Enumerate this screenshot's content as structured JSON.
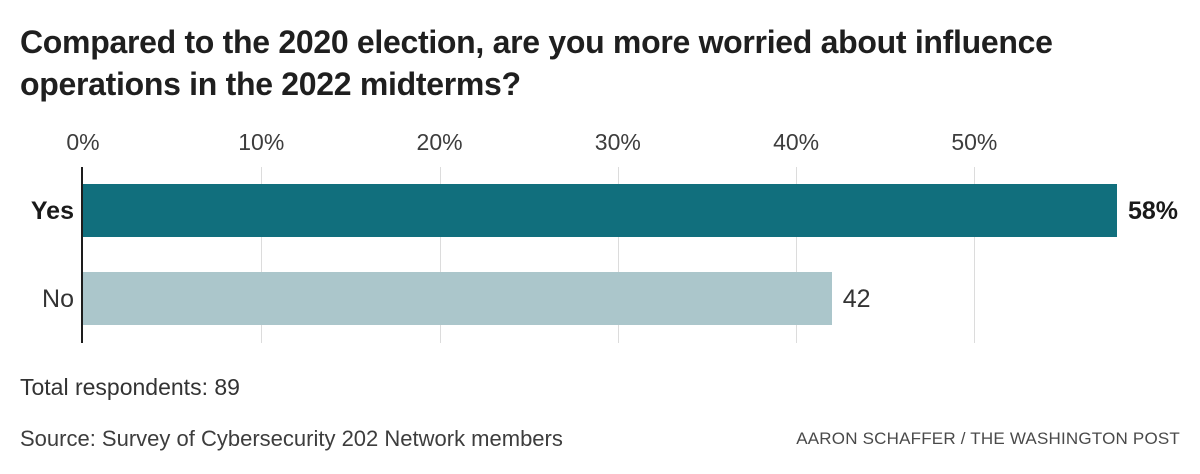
{
  "chart_data": {
    "type": "bar",
    "orientation": "horizontal",
    "title": "Compared to the 2020 election, are you more worried about influence operations in the 2022 midterms?",
    "categories": [
      "Yes",
      "No"
    ],
    "values": [
      58,
      42
    ],
    "value_labels": [
      "58%",
      "42"
    ],
    "emphasized": [
      true,
      false
    ],
    "bar_colors": [
      "#116f7d",
      "#abc6cb"
    ],
    "x_ticks": [
      0,
      10,
      20,
      30,
      40,
      50
    ],
    "x_tick_labels": [
      "0%",
      "10%",
      "20%",
      "30%",
      "40%",
      "50%"
    ],
    "xlim": [
      0,
      58
    ],
    "grid": true,
    "grid_color": "#dcdcdc",
    "axis_color": "#1d1d1d"
  },
  "footer": {
    "total": "Total respondents: 89",
    "source": "Source: Survey of Cybersecurity 202 Network members",
    "credit": "AARON SCHAFFER / THE WASHINGTON POST"
  }
}
